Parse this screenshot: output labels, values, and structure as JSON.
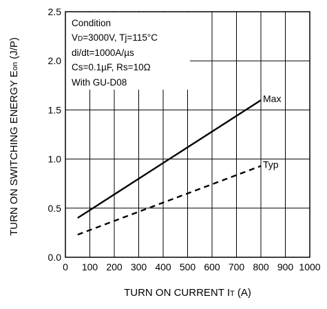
{
  "chart_data": {
    "type": "line",
    "xlabel_main": "TURN ON CURRENT I",
    "xlabel_sub": "T",
    "xlabel_unit": " (A)",
    "ylabel_main": "TURN ON SWITCHING ENERGY E",
    "ylabel_sub": "on",
    "ylabel_unit": " (J/P)",
    "xlim": [
      0,
      1000
    ],
    "ylim": [
      0.0,
      2.5
    ],
    "x_ticks": [
      0,
      100,
      200,
      300,
      400,
      500,
      600,
      700,
      800,
      900,
      1000
    ],
    "x_tick_labels": [
      "0",
      "100",
      "200",
      "300",
      "400",
      "500",
      "600",
      "700",
      "800",
      "900",
      "1000"
    ],
    "y_ticks": [
      0.0,
      0.5,
      1.0,
      1.5,
      2.0,
      2.5
    ],
    "y_tick_labels": [
      "0.0",
      "0.5",
      "1.0",
      "1.5",
      "2.0",
      "2.5"
    ],
    "grid": true,
    "series": [
      {
        "name": "Max",
        "style": "solid",
        "color": "#000000",
        "x": [
          50,
          800
        ],
        "y": [
          0.4,
          1.6
        ]
      },
      {
        "name": "Typ",
        "style": "dashed",
        "color": "#000000",
        "x": [
          50,
          800
        ],
        "y": [
          0.23,
          0.93
        ]
      }
    ],
    "condition": {
      "line1": "Condition",
      "line2_prefix": "V",
      "line2_sub": "D",
      "line2_rest": "=3000V, Tj=115°C",
      "line3": "di/dt=1000A/µs",
      "line4": "Cs=0.1µF, Rs=10Ω",
      "line5": "With GU-D08"
    }
  }
}
